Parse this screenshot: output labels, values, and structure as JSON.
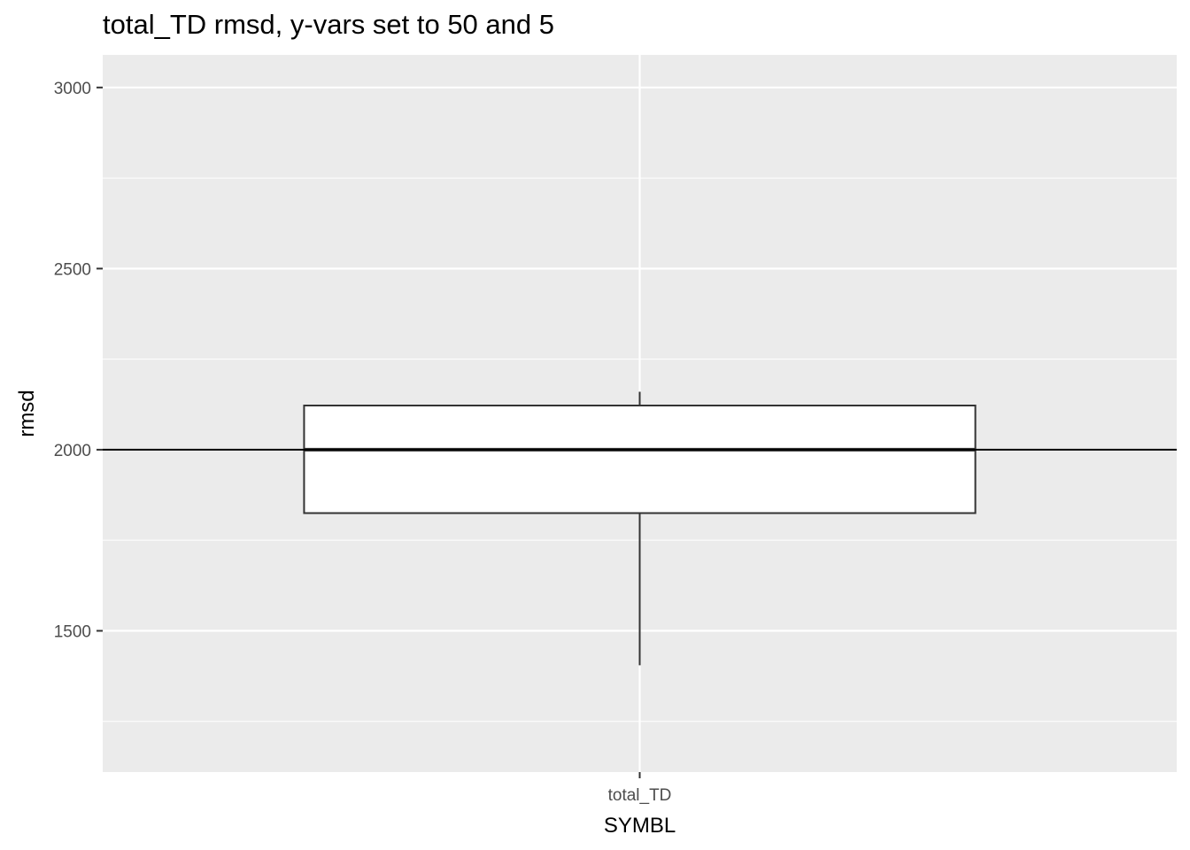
{
  "chart_data": {
    "type": "boxplot",
    "title": "total_TD rmsd, y-vars set to 50 and 5",
    "xlabel": "SYMBL",
    "ylabel": "rmsd",
    "categories": [
      "total_TD"
    ],
    "boxes": [
      {
        "category": "total_TD",
        "whisker_low": 1405,
        "q1": 1825,
        "median": 2000,
        "q3": 2122,
        "whisker_high": 2160
      }
    ],
    "reference_line": {
      "y": 2000
    },
    "y_ticks": [
      1500,
      2000,
      2500,
      3000
    ],
    "y_minor_ticks": [
      1250,
      1750,
      2250,
      2750
    ],
    "ylim": [
      1110,
      3090
    ],
    "grid": true,
    "legend": "none",
    "colors": {
      "panel": "#EBEBEB",
      "grid": "#FFFFFF",
      "box_fill": "#FFFFFF",
      "box_stroke": "#333333",
      "reference_line": "#000000",
      "tick_text": "#4D4D4D"
    }
  }
}
